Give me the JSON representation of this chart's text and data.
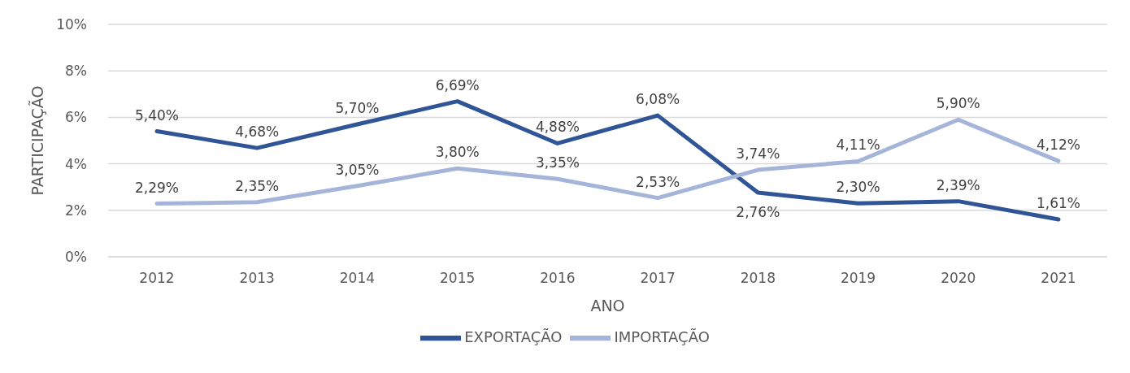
{
  "chart_data": {
    "type": "line",
    "xlabel": "ANO",
    "ylabel": "PARTICIPAÇÃO",
    "categories": [
      "2012",
      "2013",
      "2014",
      "2015",
      "2016",
      "2017",
      "2018",
      "2019",
      "2020",
      "2021"
    ],
    "series": [
      {
        "name": "EXPORTAÇÃO",
        "color": "#2f5597",
        "values": [
          5.4,
          4.68,
          5.7,
          6.69,
          4.88,
          6.08,
          2.76,
          2.3,
          2.39,
          1.61
        ],
        "value_labels": [
          "5,40%",
          "4,68%",
          "5,70%",
          "6,69%",
          "4,88%",
          "6,08%",
          "2,76%",
          "2,30%",
          "2,39%",
          "1,61%"
        ]
      },
      {
        "name": "IMPORTAÇÃO",
        "color": "#a5b4d9",
        "values": [
          2.29,
          2.35,
          3.05,
          3.8,
          3.35,
          2.53,
          3.74,
          4.11,
          5.9,
          4.12
        ],
        "value_labels": [
          "2,29%",
          "2,35%",
          "3,05%",
          "3,80%",
          "3,35%",
          "2,53%",
          "3,74%",
          "4,11%",
          "5,90%",
          "4,12%"
        ]
      }
    ],
    "ylim": [
      0,
      10
    ],
    "yticks": [
      {
        "value": 0,
        "label": "0%"
      },
      {
        "value": 2,
        "label": "2%"
      },
      {
        "value": 4,
        "label": "4%"
      },
      {
        "value": 6,
        "label": "6%"
      },
      {
        "value": 8,
        "label": "8%"
      },
      {
        "value": 10,
        "label": "10%"
      }
    ],
    "grid": "y",
    "legend": "bottom",
    "marker": "none",
    "line_style": "solid"
  }
}
